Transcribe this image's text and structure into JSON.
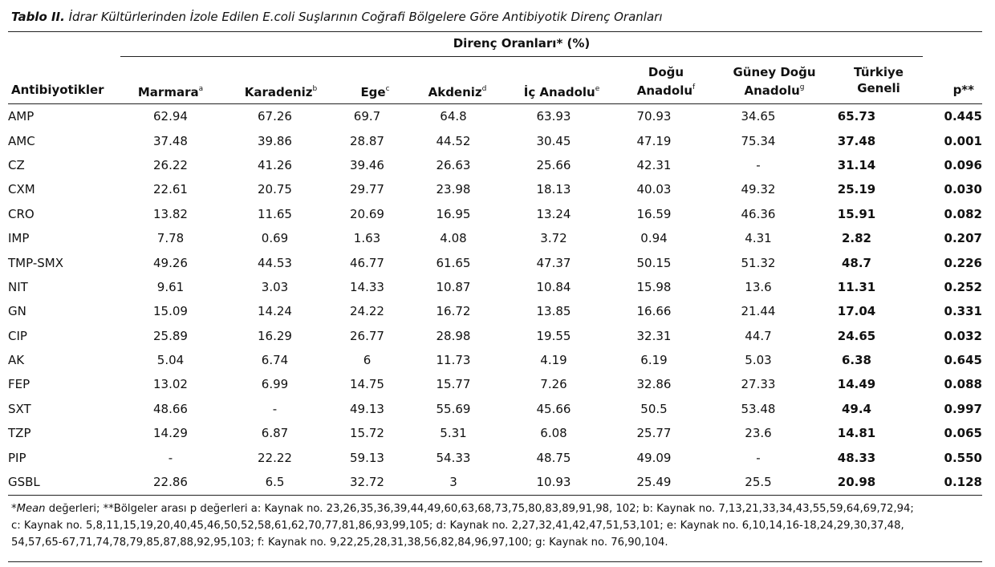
{
  "caption": {
    "label": "Tablo II.",
    "title": "İdrar Kültürlerinden İzole Edilen E.coli Suşlarının Coğrafi Bölgelere Göre Antibiyotik Direnç Oranları"
  },
  "header": {
    "group_label": "Direnç Oranları* (%)",
    "antibiotic": "Antibiyotikler",
    "marmara": "Marmara",
    "marmara_sup": "a",
    "karadeniz": "Karadeniz",
    "karadeniz_sup": "b",
    "ege": "Ege",
    "ege_sup": "c",
    "akdeniz": "Akdeniz",
    "akdeniz_sup": "d",
    "ic_anadolu": "İç Anadolu",
    "ic_anadolu_sup": "e",
    "dogu_line1": "Doğu",
    "dogu_line2": "Anadolu",
    "dogu_sup": "f",
    "guney_line1": "Güney Doğu",
    "guney_line2": "Anadolu",
    "guney_sup": "g",
    "turkiye_line1": "Türkiye",
    "turkiye_line2": "Geneli",
    "p": "p**"
  },
  "rows": [
    {
      "name": "AMP",
      "v": [
        "62.94",
        "67.26",
        "69.7",
        "64.8",
        "63.93",
        "70.93",
        "34.65"
      ],
      "total": "65.73",
      "p": "0.445"
    },
    {
      "name": "AMC",
      "v": [
        "37.48",
        "39.86",
        "28.87",
        "44.52",
        "30.45",
        "47.19",
        "75.34"
      ],
      "total": "37.48",
      "p": "0.001"
    },
    {
      "name": "CZ",
      "v": [
        "26.22",
        "41.26",
        "39.46",
        "26.63",
        "25.66",
        "42.31",
        "-"
      ],
      "total": "31.14",
      "p": "0.096"
    },
    {
      "name": "CXM",
      "v": [
        "22.61",
        "20.75",
        "29.77",
        "23.98",
        "18.13",
        "40.03",
        "49.32"
      ],
      "total": "25.19",
      "p": "0.030"
    },
    {
      "name": "CRO",
      "v": [
        "13.82",
        "11.65",
        "20.69",
        "16.95",
        "13.24",
        "16.59",
        "46.36"
      ],
      "total": "15.91",
      "p": "0.082"
    },
    {
      "name": "IMP",
      "v": [
        "7.78",
        "0.69",
        "1.63",
        "4.08",
        "3.72",
        "0.94",
        "4.31"
      ],
      "total": "2.82",
      "p": "0.207"
    },
    {
      "name": "TMP-SMX",
      "v": [
        "49.26",
        "44.53",
        "46.77",
        "61.65",
        "47.37",
        "50.15",
        "51.32"
      ],
      "total": "48.7",
      "p": "0.226"
    },
    {
      "name": "NIT",
      "v": [
        "9.61",
        "3.03",
        "14.33",
        "10.87",
        "10.84",
        "15.98",
        "13.6"
      ],
      "total": "11.31",
      "p": "0.252"
    },
    {
      "name": "GN",
      "v": [
        "15.09",
        "14.24",
        "24.22",
        "16.72",
        "13.85",
        "16.66",
        "21.44"
      ],
      "total": "17.04",
      "p": "0.331"
    },
    {
      "name": "CIP",
      "v": [
        "25.89",
        "16.29",
        "26.77",
        "28.98",
        "19.55",
        "32.31",
        "44.7"
      ],
      "total": "24.65",
      "p": "0.032"
    },
    {
      "name": "AK",
      "v": [
        "5.04",
        "6.74",
        "6",
        "11.73",
        "4.19",
        "6.19",
        "5.03"
      ],
      "total": "6.38",
      "p": "0.645"
    },
    {
      "name": "FEP",
      "v": [
        "13.02",
        "6.99",
        "14.75",
        "15.77",
        "7.26",
        "32.86",
        "27.33"
      ],
      "total": "14.49",
      "p": "0.088"
    },
    {
      "name": "SXT",
      "v": [
        "48.66",
        "-",
        "49.13",
        "55.69",
        "45.66",
        "50.5",
        "53.48"
      ],
      "total": "49.4",
      "p": "0.997"
    },
    {
      "name": "TZP",
      "v": [
        "14.29",
        "6.87",
        "15.72",
        "5.31",
        "6.08",
        "25.77",
        "23.6"
      ],
      "total": "14.81",
      "p": "0.065"
    },
    {
      "name": "PIP",
      "v": [
        "-",
        "22.22",
        "59.13",
        "54.33",
        "48.75",
        "49.09",
        "-"
      ],
      "total": "48.33",
      "p": "0.550"
    },
    {
      "name": "GSBL",
      "v": [
        "22.86",
        "6.5",
        "32.72",
        "3",
        "10.93",
        "25.49",
        "25.5"
      ],
      "total": "20.98",
      "p": "0.128"
    }
  ],
  "footnote": {
    "star": "*",
    "mean": "Mean",
    "line1_rest": " değerleri; **Bölgeler arası p değerleri a: Kaynak no. 23,26,35,36,39,44,49,60,63,68,73,75,80,83,89,91,98, 102; b: Kaynak no. 7,13,21,33,34,43,55,59,64,69,72,94;",
    "line2": "c: Kaynak no. 5,8,11,15,19,20,40,45,46,50,52,58,61,62,70,77,81,86,93,99,105; d: Kaynak no. 2,27,32,41,42,47,51,53,101; e: Kaynak no. 6,10,14,16-18,24,29,30,37,48,",
    "line3": "54,57,65-67,71,74,78,79,85,87,88,92,95,103;  f: Kaynak no. 9,22,25,28,31,38,56,82,84,96,97,100; g: Kaynak no. 76,90,104."
  }
}
